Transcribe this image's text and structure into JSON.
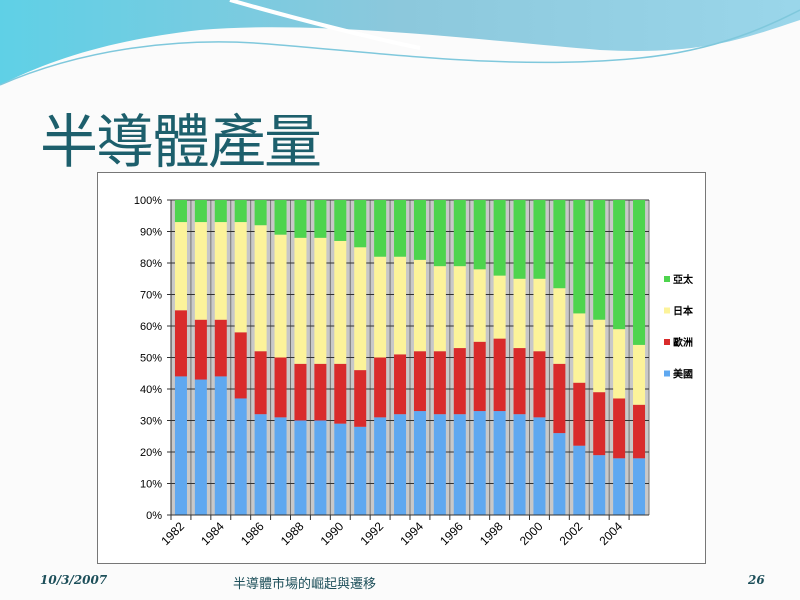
{
  "slide": {
    "title": "半導體產量",
    "footer_date": "10/3/2007",
    "footer_subtitle": "半導體市場的崛起與遷移",
    "page_number": "26"
  },
  "colors": {
    "background_wave": "#6cc6dc",
    "title": "#1d5f6c",
    "plot_bg": "#c8c8c8"
  },
  "chart_data": {
    "type": "bar",
    "stacked": "percent",
    "title": "",
    "xlabel": "",
    "ylabel": "",
    "ylim": [
      0,
      100
    ],
    "y_ticks": [
      "0%",
      "10%",
      "20%",
      "30%",
      "40%",
      "50%",
      "60%",
      "70%",
      "80%",
      "90%",
      "100%"
    ],
    "categories": [
      "1982",
      "1983",
      "1984",
      "1985",
      "1986",
      "1987",
      "1988",
      "1989",
      "1990",
      "1991",
      "1992",
      "1993",
      "1994",
      "1995",
      "1996",
      "1997",
      "1998",
      "1999",
      "2000",
      "2001",
      "2002",
      "2003",
      "2004",
      "2005"
    ],
    "x_tick_labels": [
      "1982",
      "1984",
      "1986",
      "1988",
      "1990",
      "1992",
      "1994",
      "1996",
      "1998",
      "2000",
      "2002",
      "2004"
    ],
    "grid": true,
    "legend": "right",
    "series": [
      {
        "name": "美國",
        "color": "#5fa8f0",
        "values": [
          44,
          43,
          44,
          37,
          32,
          31,
          30,
          30,
          29,
          28,
          31,
          32,
          33,
          32,
          32,
          33,
          33,
          32,
          31,
          26,
          22,
          19,
          18,
          18
        ]
      },
      {
        "name": "歐洲",
        "color": "#d92b2b",
        "values": [
          21,
          19,
          18,
          21,
          20,
          19,
          18,
          18,
          19,
          18,
          19,
          19,
          19,
          20,
          21,
          22,
          23,
          21,
          21,
          22,
          20,
          20,
          19,
          17
        ]
      },
      {
        "name": "日本",
        "color": "#fcf39a",
        "values": [
          28,
          31,
          31,
          35,
          40,
          39,
          40,
          40,
          39,
          39,
          32,
          31,
          29,
          27,
          26,
          23,
          20,
          22,
          23,
          24,
          22,
          23,
          22,
          19
        ]
      },
      {
        "name": "亞太",
        "color": "#4ed44e",
        "values": [
          7,
          7,
          7,
          7,
          8,
          11,
          12,
          12,
          13,
          15,
          18,
          18,
          19,
          21,
          21,
          22,
          24,
          25,
          25,
          28,
          36,
          38,
          41,
          46
        ]
      }
    ]
  }
}
